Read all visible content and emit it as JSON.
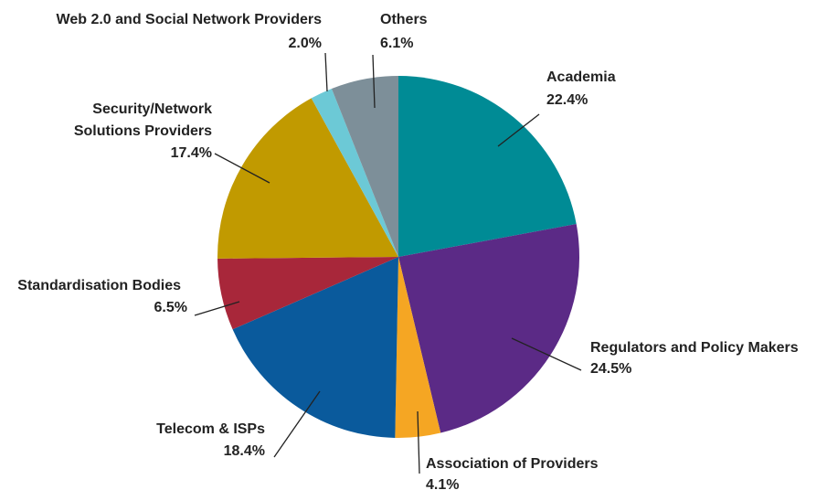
{
  "chart_data": {
    "type": "pie",
    "categories": [
      "Academia",
      "Regulators and Policy Makers",
      "Association of Providers",
      "Telecom & ISPs",
      "Standardisation Bodies",
      "Security/Network Solutions Providers",
      "Web 2.0 and Social Network Providers",
      "Others"
    ],
    "values": [
      22.4,
      24.5,
      4.1,
      18.4,
      6.5,
      17.4,
      2.0,
      6.1
    ],
    "value_labels": [
      "22.4%",
      "24.5%",
      "4.1%",
      "18.4%",
      "6.5%",
      "17.4%",
      "2.0%",
      "6.1%"
    ],
    "colors": [
      "#008b95",
      "#5b2a86",
      "#f5a623",
      "#0a5a9c",
      "#a8273a",
      "#c19a00",
      "#6cc9d6",
      "#7d8f99"
    ]
  }
}
